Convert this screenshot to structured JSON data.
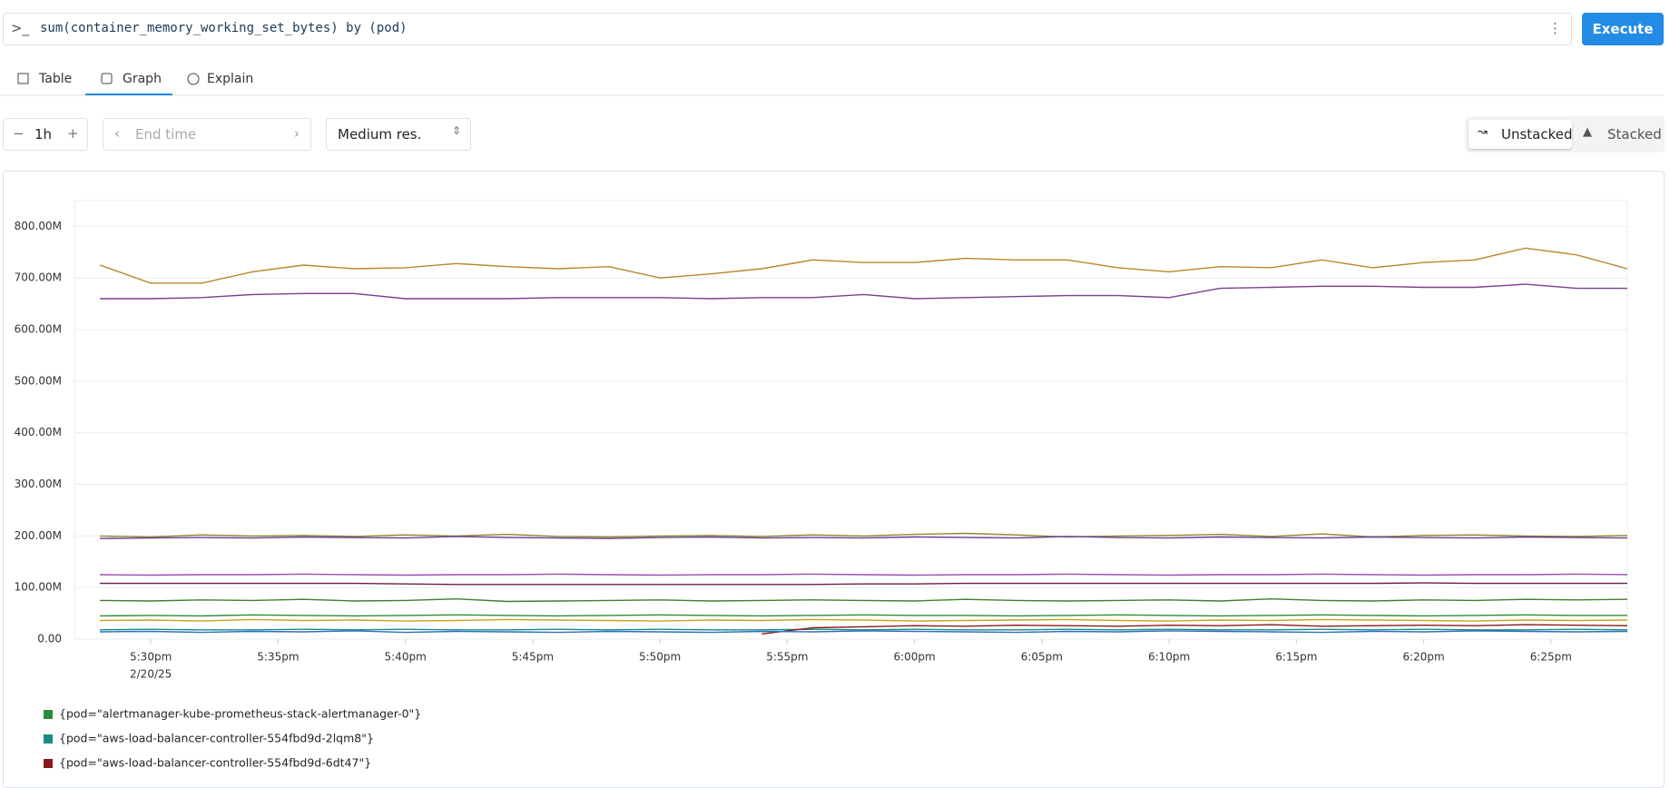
{
  "query": "sum(container_memory_working_set_bytes) by (pod)",
  "execute": "Execute",
  "tabs": [
    "Table",
    "Graph",
    "Explain"
  ],
  "controls": {
    "range": "1h",
    "end_time": "End time",
    "resolution": "Medium res.",
    "unstacked": "Unstacked",
    "stacked": "Stacked"
  },
  "chart_data": {
    "type": "line",
    "x": [
      "5:28pm",
      "5:30pm",
      "5:32pm",
      "5:34pm",
      "5:36pm",
      "5:38pm",
      "5:40pm",
      "5:42pm",
      "5:44pm",
      "5:46pm",
      "5:48pm",
      "5:50pm",
      "5:52pm",
      "5:54pm",
      "5:56pm",
      "5:58pm",
      "6:00pm",
      "6:02pm",
      "6:04pm",
      "6:06pm",
      "6:08pm",
      "6:10pm",
      "6:12pm",
      "6:14pm",
      "6:16pm",
      "6:18pm",
      "6:20pm",
      "6:22pm",
      "6:24pm",
      "6:26pm",
      "6:28pm"
    ],
    "x_date": "2/20/25",
    "xlim": [
      "5:27pm",
      "6:28pm"
    ],
    "xticks": [
      "5:30pm",
      "5:35pm",
      "5:40pm",
      "5:45pm",
      "5:50pm",
      "5:55pm",
      "6:00pm",
      "6:05pm",
      "6:10pm",
      "6:15pm",
      "6:20pm",
      "6:25pm"
    ],
    "ylim": [
      0,
      850
    ],
    "yticks": [
      {
        "value": 0,
        "label": "0.00"
      },
      {
        "value": 100,
        "label": "100.00M"
      },
      {
        "value": 200,
        "label": "200.00M"
      },
      {
        "value": 300,
        "label": "300.00M"
      },
      {
        "value": 400,
        "label": "400.00M"
      },
      {
        "value": 500,
        "label": "500.00M"
      },
      {
        "value": 600,
        "label": "600.00M"
      },
      {
        "value": 700,
        "label": "700.00M"
      },
      {
        "value": 800,
        "label": "800.00M"
      }
    ],
    "grid": true,
    "series": [
      {
        "name": "{pod=\"alertmanager-kube-prometheus-stack-alertmanager-0\"}",
        "color": "#2e8b3a",
        "values": [
          45,
          46,
          45,
          47,
          46,
          45,
          46,
          47,
          46,
          45,
          46,
          47,
          46,
          45,
          46,
          47,
          46,
          46,
          45,
          46,
          47,
          46,
          45,
          46,
          47,
          46,
          45,
          46,
          47,
          46,
          46
        ]
      },
      {
        "name": "{pod=\"aws-load-balancer-controller-554fbd9d-2lqm8\"}",
        "color": "#1a8a84",
        "values": [
          18,
          19,
          18,
          18,
          19,
          18,
          19,
          18,
          18,
          19,
          18,
          19,
          18,
          18,
          19,
          18,
          19,
          18,
          18,
          19,
          18,
          19,
          18,
          18,
          19,
          18,
          19,
          18,
          18,
          19,
          18
        ]
      },
      {
        "name": "{pod=\"aws-load-balancer-controller-554fbd9d-6dt47\"}",
        "color": "#8b1a1a",
        "values": [
          null,
          null,
          null,
          null,
          null,
          null,
          null,
          null,
          null,
          null,
          null,
          null,
          null,
          10,
          22,
          24,
          26,
          25,
          27,
          26,
          25,
          27,
          26,
          28,
          25,
          26,
          27,
          26,
          28,
          27,
          26
        ]
      },
      {
        "color": "#b8862b",
        "values": [
          725,
          690,
          690,
          712,
          725,
          718,
          720,
          728,
          722,
          718,
          722,
          700,
          708,
          718,
          735,
          730,
          730,
          738,
          735,
          735,
          720,
          712,
          722,
          720,
          735,
          720,
          730,
          735,
          758,
          745,
          718
        ]
      },
      {
        "color": "#7b3f8f",
        "values": [
          660,
          660,
          662,
          668,
          670,
          670,
          660,
          660,
          660,
          662,
          662,
          662,
          660,
          662,
          662,
          668,
          660,
          662,
          664,
          666,
          666,
          662,
          680,
          682,
          684,
          684,
          682,
          682,
          688,
          680,
          680
        ]
      },
      {
        "color": "#8f8a2b",
        "values": [
          200,
          198,
          202,
          200,
          201,
          199,
          202,
          200,
          203,
          199,
          198,
          200,
          201,
          199,
          202,
          200,
          203,
          205,
          202,
          198,
          200,
          201,
          203,
          199,
          204,
          198,
          201,
          202,
          200,
          199,
          201
        ]
      },
      {
        "color": "#6a3d9a",
        "values": [
          195,
          196,
          197,
          196,
          198,
          197,
          196,
          199,
          197,
          196,
          195,
          197,
          198,
          196,
          197,
          196,
          198,
          197,
          196,
          199,
          197,
          196,
          198,
          197,
          196,
          198,
          197,
          196,
          198,
          197,
          196
        ]
      },
      {
        "color": "#9b4fb0",
        "values": [
          125,
          124,
          125,
          125,
          126,
          125,
          124,
          125,
          125,
          126,
          125,
          124,
          125,
          125,
          126,
          125,
          124,
          125,
          125,
          126,
          125,
          124,
          125,
          125,
          126,
          125,
          124,
          125,
          125,
          126,
          125
        ]
      },
      {
        "color": "#6b1d4a",
        "values": [
          108,
          108,
          108,
          108,
          108,
          108,
          107,
          106,
          106,
          106,
          106,
          106,
          106,
          106,
          106,
          107,
          107,
          108,
          108,
          108,
          108,
          108,
          108,
          108,
          108,
          108,
          109,
          108,
          108,
          108,
          108
        ]
      },
      {
        "color": "#3f7f2f",
        "values": [
          75,
          74,
          76,
          75,
          77,
          74,
          75,
          78,
          73,
          74,
          75,
          76,
          74,
          75,
          76,
          75,
          74,
          77,
          75,
          74,
          75,
          76,
          74,
          78,
          75,
          74,
          76,
          75,
          77,
          76,
          77
        ]
      },
      {
        "color": "#2f6fbf",
        "values": [
          14,
          15,
          13,
          15,
          14,
          16,
          13,
          15,
          14,
          13,
          15,
          14,
          13,
          15,
          14,
          16,
          15,
          14,
          13,
          15,
          14,
          16,
          15,
          14,
          13,
          15,
          14,
          16,
          15,
          14,
          15
        ]
      },
      {
        "color": "#c9a227",
        "values": [
          36,
          37,
          35,
          38,
          36,
          37,
          35,
          36,
          38,
          37,
          36,
          35,
          37,
          36,
          38,
          37,
          35,
          36,
          37,
          38,
          36,
          35,
          37,
          36,
          38,
          37,
          36,
          35,
          37,
          36,
          37
        ]
      }
    ]
  }
}
